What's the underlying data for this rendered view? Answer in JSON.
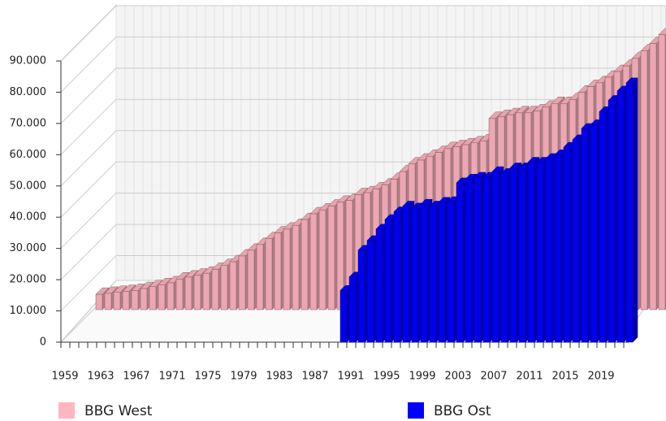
{
  "chart_data": {
    "type": "bar3d",
    "categories": [
      "1959",
      "1960",
      "1961",
      "1962",
      "1963",
      "1964",
      "1965",
      "1966",
      "1967",
      "1968",
      "1969",
      "1970",
      "1971",
      "1972",
      "1973",
      "1974",
      "1975",
      "1976",
      "1977",
      "1978",
      "1979",
      "1980",
      "1981",
      "1982",
      "1983",
      "1984",
      "1985",
      "1986",
      "1987",
      "1988",
      "1989",
      "1990",
      "1991",
      "1992",
      "1993",
      "1994",
      "1995",
      "1996",
      "1997",
      "1998",
      "1999",
      "2000",
      "2001",
      "2002",
      "2003",
      "2004",
      "2005",
      "2006",
      "2007",
      "2008",
      "2009",
      "2010",
      "2011",
      "2012",
      "2013",
      "2014",
      "2015",
      "2016",
      "2017",
      "2018",
      "2019",
      "2020",
      "2021",
      "2022"
    ],
    "series": [
      {
        "name": "BBG West",
        "color": "#ffb6c1",
        "values": [
          4908,
          5215,
          5522,
          5829,
          6136,
          6749,
          7363,
          7976,
          8590,
          9817,
          10430,
          11044,
          11658,
          12885,
          14112,
          15339,
          17179,
          19020,
          20861,
          22701,
          24542,
          25769,
          26996,
          28837,
          30678,
          31905,
          33132,
          34359,
          34972,
          36813,
          37427,
          38654,
          39881,
          41722,
          44176,
          46630,
          47857,
          49084,
          50311,
          51538,
          52151,
          52765,
          53379,
          54000,
          61200,
          61800,
          62400,
          63000,
          63000,
          63600,
          64800,
          66000,
          66000,
          67200,
          69600,
          71400,
          72600,
          74400,
          76200,
          78000,
          80400,
          82800,
          85200,
          88000
        ]
      },
      {
        "name": "BBG Ost",
        "color": "#0000ff",
        "values": [
          null,
          null,
          null,
          null,
          null,
          null,
          null,
          null,
          null,
          null,
          null,
          null,
          null,
          null,
          null,
          null,
          null,
          null,
          null,
          null,
          null,
          null,
          null,
          null,
          null,
          null,
          null,
          null,
          null,
          null,
          null,
          16566,
          20860,
          29450,
          32518,
          36200,
          39267,
          41722,
          43562,
          42949,
          44176,
          43562,
          44789,
          45000,
          51000,
          52200,
          52800,
          52800,
          54600,
          54000,
          55800,
          55800,
          57600,
          57600,
          58800,
          60000,
          62400,
          64800,
          68400,
          69600,
          73800,
          77400,
          80400,
          83000
        ]
      }
    ],
    "ylim": [
      0,
      90000
    ],
    "yticks": [
      0,
      {
        "value": 10000,
        "label": "10.000"
      },
      {
        "value": 20000,
        "label": "20.000"
      },
      {
        "value": 30000,
        "label": "30.000"
      },
      {
        "value": 40000,
        "label": "40.000"
      },
      {
        "value": 50000,
        "label": "50.000"
      },
      {
        "value": 60000,
        "label": "60.000"
      },
      {
        "value": 70000,
        "label": "70.000"
      },
      {
        "value": 80000,
        "label": "80.000"
      },
      {
        "value": 90000,
        "label": "90.000"
      }
    ],
    "grid": true
  }
}
